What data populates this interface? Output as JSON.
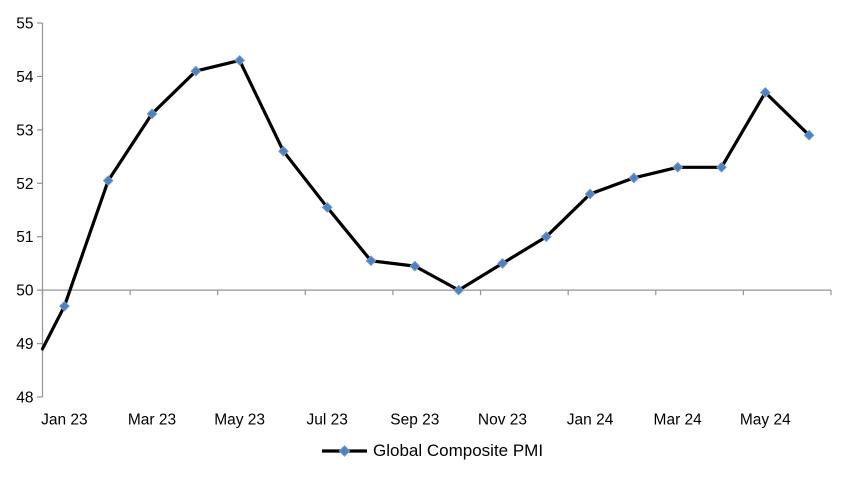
{
  "chart_data": {
    "type": "line",
    "title": "",
    "xlabel": "",
    "ylabel": "",
    "categories": [
      "Jan 23",
      "Feb 23",
      "Mar 23",
      "Apr 23",
      "May 23",
      "Jun 23",
      "Jul 23",
      "Aug 23",
      "Sep 23",
      "Oct 23",
      "Nov 23",
      "Dec 23",
      "Jan 24",
      "Feb 24",
      "Mar 24",
      "Apr 24",
      "May 24",
      "Jun 24"
    ],
    "series": [
      {
        "name": "Global Composite PMI",
        "values": [
          49.7,
          52.05,
          53.3,
          54.1,
          54.3,
          52.6,
          51.55,
          50.55,
          50.45,
          50.0,
          50.5,
          51.0,
          51.8,
          52.1,
          52.3,
          52.3,
          53.7,
          52.9
        ]
      }
    ],
    "edge_start_value": 48.9,
    "x_tick_labels": [
      "Jan 23",
      "Mar 23",
      "May 23",
      "Jul 23",
      "Sep 23",
      "Nov 23",
      "Jan 24",
      "Mar 24",
      "May 24"
    ],
    "y_ticks": [
      48,
      49,
      50,
      51,
      52,
      53,
      54,
      55
    ],
    "ylim": [
      48,
      55
    ],
    "axis_cross_value": 50,
    "grid": false,
    "legend": {
      "label": "Global Composite PMI",
      "position": "bottom-center"
    },
    "colors": {
      "line": "#000000",
      "marker": "#4f81bd",
      "marker_edge": "#7199c8",
      "axis": "#969696",
      "text": "#000000"
    }
  }
}
